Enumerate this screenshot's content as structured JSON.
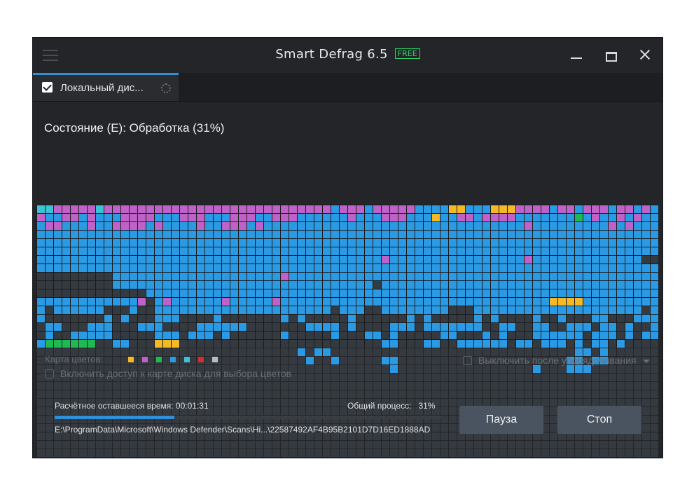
{
  "window": {
    "title": "Smart Defrag 6.5",
    "badge": "FREE"
  },
  "tab": {
    "label": "Локальный дис..."
  },
  "status": "Состояние (E): Обработка (31%)",
  "colors": {
    "free": "#343a40",
    "used": "#2b9ae4",
    "fragmented": "#bf62c8",
    "processing": "#f5b925",
    "optimized": "#1fb954",
    "mft": "#39c3d3",
    "accent": "#2f8fd8"
  },
  "legend": {
    "label": "Карта цветов:",
    "swatches": [
      "#343a40",
      "#f5b925",
      "#bf62c8",
      "#1fb954",
      "#2b9ae4",
      "#39c3d3",
      "#d0302c",
      "#b8bcc0"
    ]
  },
  "options": {
    "map_access": "Включить доступ к карте диска для выбора цветов",
    "shutdown": "Выключить после упорядочивания"
  },
  "progress": {
    "remaining": "Расчётное оставшееся время: 00:01:31",
    "overall_label": "Общий процесс:",
    "overall_value": "31%",
    "fraction": 0.31,
    "current_file": "E:\\ProgramData\\Microsoft\\Windows Defender\\Scans\\Hi...\\22587492AF4B95B2101D7D16ED1888AD"
  },
  "buttons": {
    "pause": "Пауза",
    "stop": "Стоп"
  },
  "disk_map": {
    "columns": 74,
    "rows": [
      "55222225222222222222222222222222222122212222211113311133322221221222122121",
      "21122121112222111222111222112221111112111222111311221222211111114121121211",
      "12211121122221211112112221211111111111111111111111111111112111111111212111",
      "11111111111111111111111111111111111111111111111111111111111111111111111111",
      "11111111111111111111111111111111111111111111111111111111111111111111111111",
      "11111111111111111111111111111111111111111111111111111111111111111111111111",
      "11111111111111111111111111111111111111111211111111111111112111111111111100",
      "11111111111111111111111111111111111111111111111111111111111111111111111111",
      "00000000011111111111111111111211111111111111111111111111111111111111111111",
      "00000000011111111111111111111111111111110111111111111111111111111111111111",
      "00000000000001111111111111111111111111111111111111111111111111111111111111",
      "11111111111120121111112111112111111111111111111111111111111113333111111111",
      "10111111000100111111111111111111111011100111111110001111111111111111111101",
      "10000000101000111000010000000101000001000000101000001010000100100011000111",
      "01100011100011100001111110000000111101000011101111111001100110011101101001",
      "01001111100000111011101000000100000100011010000011000101000111111011101011",
      "14444440011000333000000000000000000000000110001100111111011011101011010000",
      "00000000000000000000000000000001011000000000000000000000000000001101000000",
      "00000000000000000000000000000000100100000110000000000000000000011011000000",
      "00000000000000000000000000000000000000000010000000000000000100011100000000",
      "00000000000000000000000000000000000000000000000000000000000000000000000000",
      "00000000000000000000000000000000000000000000000000000000000000000000000000",
      "00000000000000000000000000000000000000000000000000000000000000000000000000",
      "00000000000000000000000000000000000000000000000000000000000000000000000000",
      "00000000000000000000000000000000000000000000000000000000000000000000000000",
      "00000000000000000000000000000000000000000000000000000000000000000000000000",
      "00000000000000000000000000000000000000000000000000000000000000000000000000",
      "00000000000000000000000000000000000000000000000000000000000000000000000000",
      "00000000000000000000000000000000000000000000000000000000000000000000000000",
      "00000000000000000000000000000000000000000000000000000000000000000000000000",
      "00000000000000000000000000000000000000000000000000000000000000000000000000",
      "00000000000000000000000000000000000000000000000000000000000000000000000000",
      "00000000000000000000000000000000000000000000000000000000000000000000000000",
      "00000000000000000000000000000000000000000000000000000000000000000000000000"
    ]
  }
}
